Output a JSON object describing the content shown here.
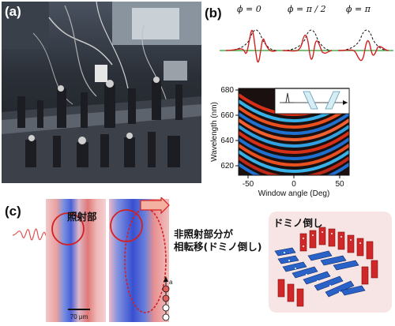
{
  "panels": {
    "a": "(a)",
    "b": "(b)",
    "c": "(c)"
  },
  "phase_labels": [
    "ϕ = 0",
    "ϕ = π / 2",
    "ϕ = π"
  ],
  "spectrogram": {
    "xlabel": "Window angle (Deg)",
    "ylabel": "Wavelength (nm)",
    "xticks": [
      "-50",
      "0",
      "50"
    ],
    "yticks": [
      "680",
      "660",
      "640",
      "620"
    ]
  },
  "annotations": {
    "irradiated": "照射部",
    "non_irradiated_line1": "非照射部分が",
    "non_irradiated_line2": "相転移(ドミノ倒し)",
    "domino": "ドミノ倒し",
    "scalebar": "70 μm",
    "axis_a": "a"
  },
  "colors": {
    "wave_red": "#d42020",
    "envelope": "#111111",
    "baseline_green": "#2aa02a",
    "arrow_red": "#e05050"
  }
}
